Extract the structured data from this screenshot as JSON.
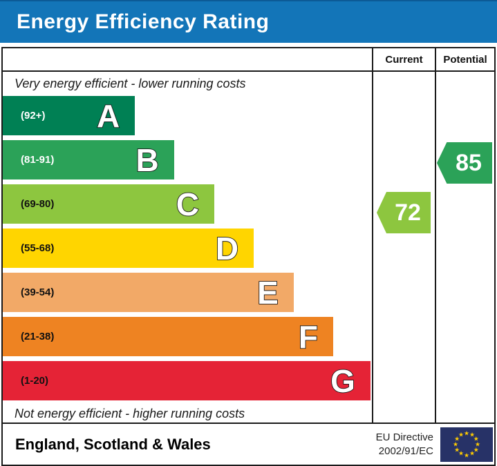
{
  "title_bar": {
    "title": "Energy Efficiency Rating",
    "bg_color": "#1375b8",
    "text_color": "#ffffff"
  },
  "table": {
    "header": {
      "current": "Current",
      "potential": "Potential"
    },
    "caption_top": "Very energy efficient - lower running costs",
    "caption_bottom": "Not energy efficient - higher running costs"
  },
  "bands": [
    {
      "letter": "A",
      "range": "(92+)",
      "color": "#008054",
      "label_color": "#ffffff",
      "width_pct": 35.8
    },
    {
      "letter": "B",
      "range": "(81-91)",
      "color": "#2ba258",
      "label_color": "#ffffff",
      "width_pct": 46.4
    },
    {
      "letter": "C",
      "range": "(69-80)",
      "color": "#8dc63f",
      "label_color": "#111111",
      "width_pct": 57.3
    },
    {
      "letter": "D",
      "range": "(55-68)",
      "color": "#ffd500",
      "label_color": "#111111",
      "width_pct": 68.0
    },
    {
      "letter": "E",
      "range": "(39-54)",
      "color": "#f2a967",
      "label_color": "#111111",
      "width_pct": 78.8
    },
    {
      "letter": "F",
      "range": "(21-38)",
      "color": "#ee8322",
      "label_color": "#111111",
      "width_pct": 89.5
    },
    {
      "letter": "G",
      "range": "(1-20)",
      "color": "#e52336",
      "label_color": "#111111",
      "width_pct": 99.6
    }
  ],
  "ratings": {
    "current": {
      "value": "72",
      "color": "#8dc63f",
      "band": "C"
    },
    "potential": {
      "value": "85",
      "color": "#2ba258",
      "band": "B"
    }
  },
  "footer": {
    "region": "England, Scotland & Wales",
    "directive_line1": "EU Directive",
    "directive_line2": "2002/91/EC",
    "eu_flag": {
      "bg_color": "#273267",
      "star_color": "#ffcc00",
      "star_count": 12
    }
  },
  "chart_data": {
    "type": "bar",
    "title": "Energy Efficiency Rating",
    "categories": [
      "A",
      "B",
      "C",
      "D",
      "E",
      "F",
      "G"
    ],
    "band_ranges": [
      "92+",
      "81-91",
      "69-80",
      "55-68",
      "39-54",
      "21-38",
      "1-20"
    ],
    "band_colors": [
      "#008054",
      "#2ba258",
      "#8dc63f",
      "#ffd500",
      "#f2a967",
      "#ee8322",
      "#e52336"
    ],
    "bar_lengths_relative": [
      0.36,
      0.47,
      0.58,
      0.68,
      0.79,
      0.9,
      1.0
    ],
    "value_scale": [
      1,
      100
    ],
    "markers": [
      {
        "name": "Current",
        "value": 72,
        "band": "C",
        "color": "#8dc63f"
      },
      {
        "name": "Potential",
        "value": 85,
        "band": "B",
        "color": "#2ba258"
      }
    ],
    "annotations": [
      "Very energy efficient - lower running costs",
      "Not energy efficient - higher running costs",
      "England, Scotland & Wales",
      "EU Directive 2002/91/EC"
    ],
    "legend_position": "none",
    "grid": false
  }
}
